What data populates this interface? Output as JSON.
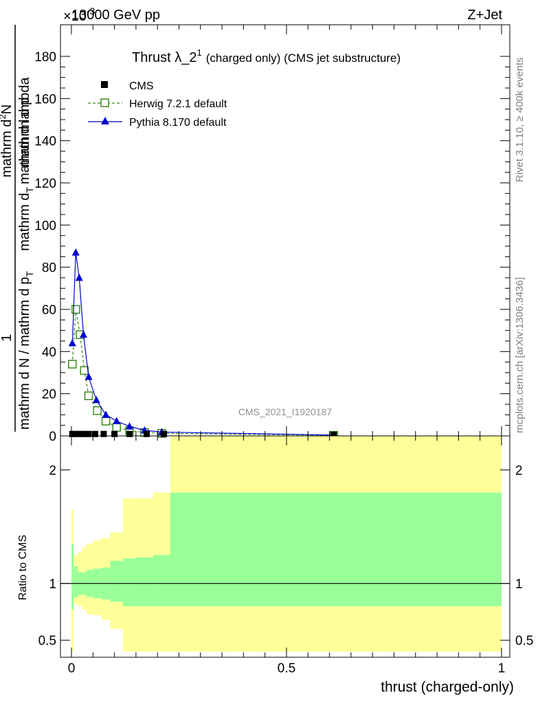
{
  "header": {
    "left_label": "13000 GeV pp",
    "right_label": "Z+Jet",
    "exponent_label": "×10",
    "exponent_power": "-3"
  },
  "side_labels": {
    "rivet": "Rivet 3.1.10, ≥ 400k events",
    "mcplots": "mcplots.cern.ch [arXiv:1306.3436]"
  },
  "chart_data": [
    {
      "type": "line",
      "title_main": "Thrust λ_2",
      "title_sup": "1",
      "title_rest": "(charged only) (CMS jet substructure)",
      "ylabel_numerator": "1",
      "ylabel_main": "mathrm d N / mathrm d p",
      "ylabel_main_sub": "T",
      "ylabel_second": "mathrm d",
      "ylabel_second_sub": "T",
      "ylabel_second_rest": "mathrm d lambda",
      "ylabel_top": "mathrm d",
      "ylabel_top_sup": "2",
      "ylabel_top_rest": "N",
      "ylabel_top_overlay": "mathrm d p",
      "watermark": "CMS_2021_I1920187",
      "xlim": [
        0,
        1
      ],
      "ylim": [
        0,
        195
      ],
      "yticks": [
        "0",
        "20",
        "40",
        "60",
        "80",
        "100",
        "120",
        "140",
        "160",
        "180"
      ],
      "legend_position": "top-left",
      "series": [
        {
          "name": "CMS",
          "marker": "square",
          "color": "#000000",
          "x": [
            0.002,
            0.01,
            0.02,
            0.03,
            0.04,
            0.055,
            0.075,
            0.1,
            0.135,
            0.175,
            0.215,
            0.61
          ],
          "y": [
            0.9,
            0.9,
            0.9,
            0.9,
            0.9,
            0.9,
            0.9,
            0.9,
            0.9,
            0.9,
            0.9,
            0.5
          ]
        },
        {
          "name": "Herwig 7.2.1 default",
          "marker": "open-square",
          "color": "#3a8a1c",
          "x": [
            0.002,
            0.01,
            0.02,
            0.03,
            0.04,
            0.06,
            0.08,
            0.105,
            0.135,
            0.17,
            0.21,
            0.61
          ],
          "y": [
            34,
            60,
            48,
            31,
            19,
            12,
            7,
            4,
            2.5,
            1.6,
            1.2,
            0.3
          ]
        },
        {
          "name": "Pythia 8.170 default",
          "marker": "triangle",
          "color": "#0000d0",
          "x": [
            0.002,
            0.01,
            0.018,
            0.028,
            0.04,
            0.058,
            0.08,
            0.105,
            0.135,
            0.17,
            0.21,
            0.61
          ],
          "y": [
            44,
            87,
            75,
            48,
            28,
            17,
            10,
            7,
            4.5,
            2.6,
            1.8,
            0.4
          ]
        }
      ]
    },
    {
      "type": "area",
      "ylabel": "Ratio to CMS",
      "xlabel": "thrust (charged-only)",
      "xlim": [
        0,
        1
      ],
      "ylim": [
        0.35,
        2.3
      ],
      "yticks": [
        "0.5",
        "1",
        "2"
      ],
      "xticks": [
        "0",
        "0.5",
        "1"
      ],
      "bands": {
        "edges": [
          0.0,
          0.005,
          0.015,
          0.025,
          0.035,
          0.05,
          0.07,
          0.09,
          0.12,
          0.15,
          0.19,
          0.23,
          1.0
        ],
        "green_low": [
          0.77,
          0.88,
          0.9,
          0.9,
          0.88,
          0.87,
          0.86,
          0.84,
          0.8,
          0.8,
          0.8,
          0.8
        ],
        "green_high": [
          1.35,
          1.15,
          1.1,
          1.1,
          1.12,
          1.13,
          1.14,
          1.2,
          1.22,
          1.23,
          1.25,
          1.8
        ],
        "yellow_low": [
          0.4,
          0.82,
          0.8,
          0.77,
          0.73,
          0.72,
          0.68,
          0.6,
          0.4,
          0.4,
          0.4,
          0.4
        ],
        "yellow_high": [
          1.65,
          1.25,
          1.28,
          1.32,
          1.35,
          1.38,
          1.4,
          1.45,
          1.75,
          1.75,
          1.8,
          2.3
        ]
      },
      "reference_line": 1
    }
  ]
}
